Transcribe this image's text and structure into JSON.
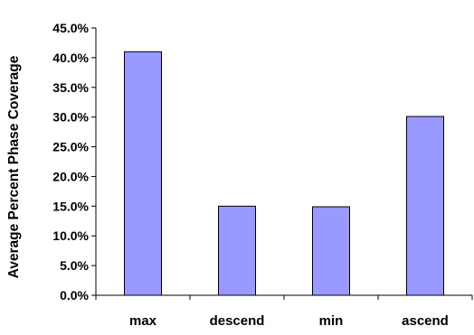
{
  "chart_data": {
    "type": "bar",
    "categories": [
      "max",
      "descend",
      "min",
      "ascend"
    ],
    "values": [
      41.0,
      15.0,
      14.9,
      30.1
    ],
    "ylabel": "Average Percent Phase Coverage",
    "xlabel": "",
    "title": "",
    "ylim": [
      0,
      45
    ],
    "yticks": [
      0,
      5,
      10,
      15,
      20,
      25,
      30,
      35,
      40,
      45
    ],
    "ytick_labels": [
      "0.0%",
      "5.0%",
      "10.0%",
      "15.0%",
      "20.0%",
      "25.0%",
      "30.0%",
      "35.0%",
      "40.0%",
      "45.0%"
    ],
    "grid": false,
    "legend": "none",
    "colors": {
      "bar_fill": "#9999ff",
      "bar_stroke": "#000000"
    }
  }
}
